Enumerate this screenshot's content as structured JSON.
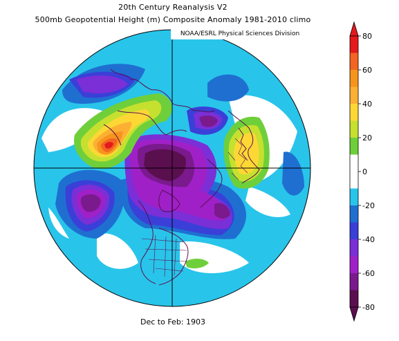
{
  "header": {
    "title_line1": "20th Century Reanalysis V2",
    "title_line2": "500mb Geopotential Height (m) Composite Anomaly 1981-2010 climo"
  },
  "credit": "NOAA/ESRL Physical Sciences Division",
  "footer": "Dec to Feb: 1903",
  "colorbar": {
    "min": -80,
    "max": 80,
    "step": 10,
    "tick_labels": [
      "80",
      "60",
      "40",
      "20",
      "0",
      "-20",
      "-40",
      "-60",
      "-80"
    ],
    "colors_top_to_bottom": [
      "#e41a1c",
      "#f26522",
      "#f7941d",
      "#fbb034",
      "#fdd835",
      "#c6e030",
      "#6fcf3a",
      "#ffffff",
      "#ffffff",
      "#29c4ea",
      "#1f6fd1",
      "#3a3fd8",
      "#7b2fd6",
      "#a020c8",
      "#7a1a8c",
      "#5a0f4f"
    ]
  },
  "map": {
    "projection": "north-polar-stereographic",
    "colors": {
      "ocean_neutral": "#ffffff",
      "neg20": "#29c4ea",
      "neg30": "#1f6fd1",
      "neg40": "#3a3fd8",
      "neg50": "#7b2fd6",
      "neg60": "#a020c8",
      "neg70": "#7a1a8c",
      "neg80": "#5a0f4f",
      "pos20": "#6fcf3a",
      "pos30": "#c6e030",
      "pos40": "#fdd835",
      "pos50": "#fbb034",
      "pos60": "#f7941d",
      "pos70": "#f26522",
      "pos80": "#e41a1c",
      "coastline": "#5a0f4f",
      "gridline": "#000000"
    }
  }
}
